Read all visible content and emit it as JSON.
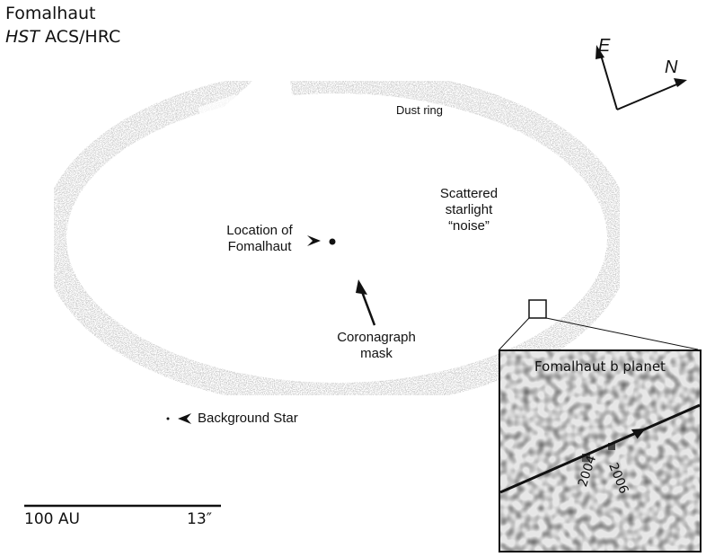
{
  "title": {
    "line1": "Fomalhaut",
    "line2_instrument": "HST",
    "line2_rest": " ACS/HRC"
  },
  "compass": {
    "east": "E",
    "north": "N"
  },
  "labels": {
    "dust_ring": "Dust ring",
    "scattered_line1": "Scattered",
    "scattered_line2": "starlight",
    "scattered_line3": "“noise”",
    "location_line1": "Location of",
    "location_line2": "Fomalhaut",
    "mask_line1": "Coronagraph",
    "mask_line2": "mask",
    "background_star": "Background Star"
  },
  "scale_bar": {
    "distance": "100 AU",
    "angle": "13″"
  },
  "inset": {
    "title": "Fomalhaut b planet",
    "year_a": "2004",
    "year_b": "2006"
  },
  "colors": {
    "ink": "#111111",
    "background": "#ffffff"
  }
}
